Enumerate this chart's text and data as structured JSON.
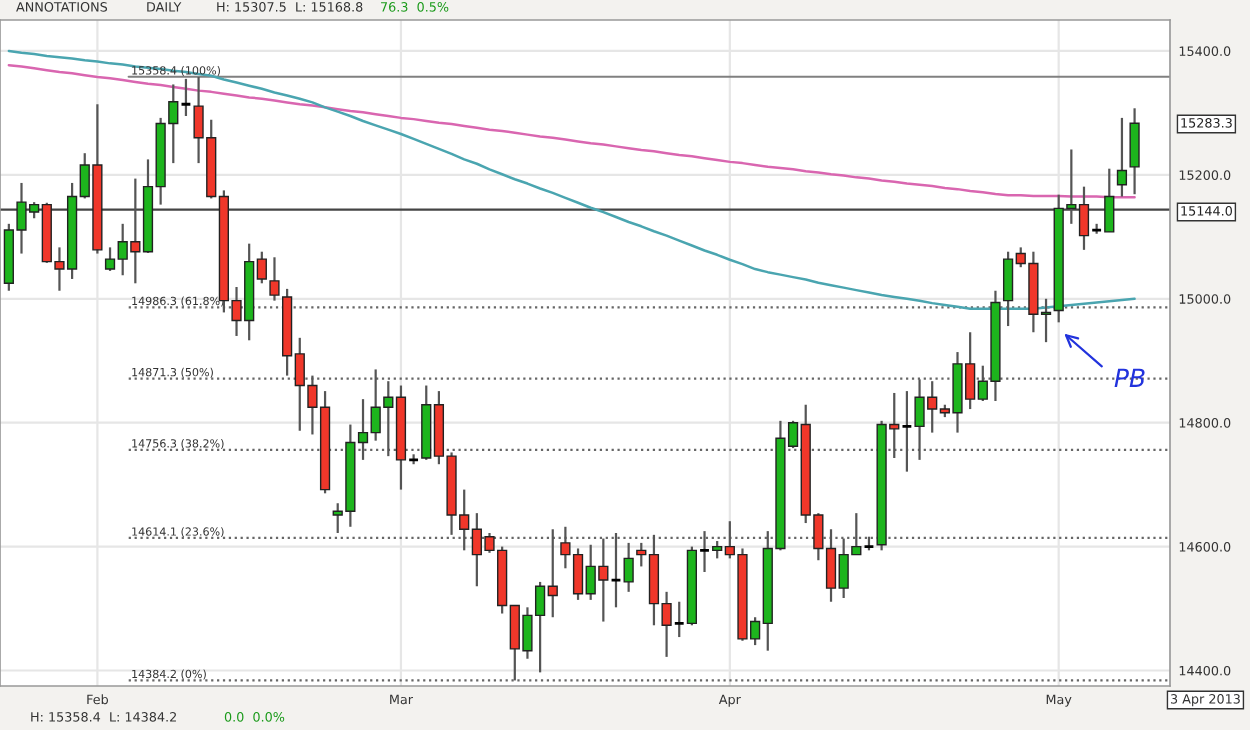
{
  "chart_data": {
    "type": "candlestick",
    "categories": [
      null,
      null,
      null,
      null,
      null,
      null,
      null,
      "Feb",
      null,
      null,
      null,
      null,
      null,
      null,
      null,
      null,
      null,
      null,
      null,
      null,
      null,
      null,
      null,
      null,
      null,
      null,
      null,
      null,
      null,
      null,
      null,
      "Mar",
      null,
      null,
      null,
      null,
      null,
      null,
      null,
      null,
      null,
      null,
      null,
      null,
      null,
      null,
      null,
      null,
      null,
      null,
      null,
      null,
      null,
      null,
      null,
      null,
      null,
      "Apr",
      null,
      null,
      null,
      null,
      null,
      null,
      null,
      null,
      null,
      null,
      null,
      null,
      null,
      null,
      null,
      null,
      null,
      null,
      null,
      null,
      null,
      null,
      null,
      null,
      null,
      "May",
      null,
      null,
      null,
      null,
      null,
      null
    ],
    "ohlc": [
      [
        15025,
        15121,
        15013,
        15111
      ],
      [
        15111,
        15187,
        15073,
        15156
      ],
      [
        15140,
        15156,
        15130,
        15152
      ],
      [
        15152,
        15155,
        15058,
        15060
      ],
      [
        15060,
        15083,
        15013,
        15048
      ],
      [
        15048,
        15187,
        15032,
        15165
      ],
      [
        15165,
        15235,
        15162,
        15216
      ],
      [
        15216,
        15314,
        15073,
        15079
      ],
      [
        15048,
        15083,
        15045,
        15064
      ],
      [
        15064,
        15121,
        15038,
        15092
      ],
      [
        15092,
        15194,
        15025,
        15076
      ],
      [
        15076,
        15225,
        15074,
        15181
      ],
      [
        15181,
        15292,
        15152,
        15283
      ],
      [
        15283,
        15346,
        15219,
        15318
      ],
      [
        15314,
        15355,
        15295,
        15314
      ],
      [
        15311,
        15358,
        15219,
        15260
      ],
      [
        15260,
        15289,
        15162,
        15165
      ],
      [
        15165,
        15175,
        14978,
        14997
      ],
      [
        14997,
        15019,
        14940,
        14965
      ],
      [
        14965,
        15089,
        14933,
        15060
      ],
      [
        15064,
        15076,
        15025,
        15032
      ],
      [
        15029,
        15067,
        14997,
        15006
      ],
      [
        15003,
        15016,
        14876,
        14908
      ],
      [
        14911,
        14937,
        14787,
        14860
      ],
      [
        14860,
        14876,
        14781,
        14825
      ],
      [
        14825,
        14851,
        14686,
        14692
      ],
      [
        14651,
        14670,
        14622,
        14657
      ],
      [
        14657,
        14797,
        14632,
        14768
      ],
      [
        14768,
        14838,
        14740,
        14784
      ],
      [
        14784,
        14886,
        14771,
        14825
      ],
      [
        14825,
        14867,
        14746,
        14841
      ],
      [
        14841,
        14860,
        14692,
        14740
      ],
      [
        14740,
        14749,
        14733,
        14740
      ],
      [
        14743,
        14860,
        14740,
        14829
      ],
      [
        14829,
        14851,
        14733,
        14746
      ],
      [
        14746,
        14752,
        14619,
        14651
      ],
      [
        14651,
        14692,
        14594,
        14628
      ],
      [
        14628,
        14654,
        14536,
        14587
      ],
      [
        14616,
        14622,
        14590,
        14594
      ],
      [
        14594,
        14600,
        14492,
        14505
      ],
      [
        14505,
        14505,
        14384,
        14435
      ],
      [
        14432,
        14502,
        14419,
        14489
      ],
      [
        14489,
        14543,
        14397,
        14536
      ],
      [
        14536,
        14628,
        14486,
        14521
      ],
      [
        14606,
        14632,
        14565,
        14587
      ],
      [
        14587,
        14597,
        14514,
        14524
      ],
      [
        14524,
        14603,
        14514,
        14568
      ],
      [
        14568,
        14613,
        14479,
        14546
      ],
      [
        14546,
        14622,
        14502,
        14546
      ],
      [
        14543,
        14606,
        14527,
        14581
      ],
      [
        14594,
        14606,
        14568,
        14587
      ],
      [
        14587,
        14619,
        14473,
        14508
      ],
      [
        14508,
        14527,
        14422,
        14473
      ],
      [
        14476,
        14511,
        14454,
        14476
      ],
      [
        14476,
        14600,
        14473,
        14594
      ],
      [
        14594,
        14625,
        14559,
        14594
      ],
      [
        14594,
        14609,
        14581,
        14600
      ],
      [
        14600,
        14641,
        14581,
        14587
      ],
      [
        14587,
        14597,
        14448,
        14451
      ],
      [
        14451,
        14486,
        14441,
        14479
      ],
      [
        14476,
        14625,
        14432,
        14597
      ],
      [
        14597,
        14803,
        14594,
        14775
      ],
      [
        14762,
        14803,
        14759,
        14800
      ],
      [
        14797,
        14829,
        14638,
        14651
      ],
      [
        14651,
        14654,
        14578,
        14597
      ],
      [
        14597,
        14628,
        14511,
        14533
      ],
      [
        14533,
        14613,
        14517,
        14587
      ],
      [
        14587,
        14654,
        14587,
        14600
      ],
      [
        14600,
        14616,
        14594,
        14600
      ],
      [
        14603,
        14803,
        14594,
        14797
      ],
      [
        14797,
        14848,
        14743,
        14790
      ],
      [
        14794,
        14851,
        14721,
        14794
      ],
      [
        14794,
        14870,
        14740,
        14841
      ],
      [
        14841,
        14867,
        14784,
        14822
      ],
      [
        14822,
        14829,
        14809,
        14816
      ],
      [
        14816,
        14914,
        14784,
        14895
      ],
      [
        14895,
        14946,
        14822,
        14838
      ],
      [
        14838,
        14892,
        14835,
        14867
      ],
      [
        14867,
        15013,
        14835,
        14994
      ],
      [
        14997,
        15076,
        14956,
        15064
      ],
      [
        15073,
        15083,
        15051,
        15057
      ],
      [
        15057,
        15076,
        14946,
        14975
      ],
      [
        14975,
        15000,
        14930,
        14978
      ],
      [
        14981,
        15168,
        14962,
        15146
      ],
      [
        15146,
        15241,
        15121,
        15152
      ],
      [
        15152,
        15181,
        15079,
        15102
      ],
      [
        15111,
        15121,
        15105,
        15111
      ],
      [
        15108,
        15210,
        15108,
        15165
      ],
      [
        15184,
        15292,
        15165,
        15207
      ],
      [
        15213,
        15307.5,
        15168.8,
        15283.3
      ]
    ],
    "colors": [
      "#1db51d",
      "#1db51d",
      "#1db51d",
      "#f0372a",
      "#f0372a",
      "#1db51d",
      "#1db51d",
      "#f0372a",
      "#1db51d",
      "#1db51d",
      "#f0372a",
      "#1db51d",
      "#1db51d",
      "#1db51d",
      "#000000",
      "#f0372a",
      "#f0372a",
      "#f0372a",
      "#f0372a",
      "#1db51d",
      "#f0372a",
      "#f0372a",
      "#f0372a",
      "#f0372a",
      "#f0372a",
      "#f0372a",
      "#1db51d",
      "#1db51d",
      "#1db51d",
      "#1db51d",
      "#1db51d",
      "#f0372a",
      "#000000",
      "#1db51d",
      "#f0372a",
      "#f0372a",
      "#f0372a",
      "#f0372a",
      "#f0372a",
      "#f0372a",
      "#f0372a",
      "#1db51d",
      "#1db51d",
      "#f0372a",
      "#f0372a",
      "#f0372a",
      "#1db51d",
      "#f0372a",
      "#000000",
      "#1db51d",
      "#f0372a",
      "#f0372a",
      "#f0372a",
      "#000000",
      "#1db51d",
      "#000000",
      "#1db51d",
      "#f0372a",
      "#f0372a",
      "#1db51d",
      "#1db51d",
      "#1db51d",
      "#1db51d",
      "#f0372a",
      "#f0372a",
      "#f0372a",
      "#1db51d",
      "#1db51d",
      "#000000",
      "#1db51d",
      "#f0372a",
      "#000000",
      "#1db51d",
      "#f0372a",
      "#f0372a",
      "#1db51d",
      "#f0372a",
      "#1db51d",
      "#1db51d",
      "#1db51d",
      "#f0372a",
      "#f0372a",
      "#1db51d",
      "#1db51d",
      "#1db51d",
      "#f0372a",
      "#000000",
      "#1db51d",
      "#1db51d",
      "#1db51d"
    ],
    "series": [
      {
        "type": "line",
        "color": "#d966b0",
        "values": [
          15377,
          15375,
          15372,
          15369,
          15366,
          15364,
          15361,
          15358,
          15356,
          15353,
          15350,
          15347,
          15345,
          15342,
          15339,
          15336,
          15334,
          15331,
          15328,
          15325,
          15323,
          15320,
          15317,
          15314,
          15312,
          15309,
          15306,
          15303,
          15301,
          15298,
          15295,
          15292,
          15290,
          15287,
          15284,
          15282,
          15279,
          15276,
          15273,
          15271,
          15268,
          15265,
          15262,
          15260,
          15257,
          15254,
          15251,
          15249,
          15246,
          15243,
          15240,
          15238,
          15235,
          15232,
          15230,
          15227,
          15224,
          15221,
          15219,
          15216,
          15213,
          15211,
          15209,
          15206,
          15204,
          15201,
          15199,
          15196,
          15194,
          15191,
          15189,
          15186,
          15184,
          15182,
          15179,
          15177,
          15174,
          15172,
          15169,
          15167,
          15167,
          15166,
          15166,
          15166,
          15165,
          15165,
          15165,
          15164,
          15164,
          15164
        ]
      },
      {
        "type": "line",
        "color": "#4aa5b0",
        "values": [
          15400,
          15397,
          15395,
          15392,
          15390,
          15388,
          15385,
          15383,
          15380,
          15378,
          15375,
          15373,
          15371,
          15368,
          15366,
          15363,
          15360,
          15354,
          15349,
          15344,
          15339,
          15333,
          15328,
          15323,
          15317,
          15309,
          15302,
          15295,
          15287,
          15280,
          15273,
          15266,
          15258,
          15250,
          15242,
          15234,
          15225,
          15218,
          15209,
          15201,
          15193,
          15186,
          15178,
          15171,
          15163,
          15155,
          15147,
          15140,
          15132,
          15124,
          15117,
          15109,
          15102,
          15094,
          15086,
          15078,
          15071,
          15063,
          15056,
          15048,
          15043,
          15039,
          15035,
          15031,
          15026,
          15022,
          15018,
          15014,
          15010,
          15006,
          15003,
          15000,
          14997,
          14993,
          14990,
          14987,
          14984,
          14984,
          14984,
          14984,
          14984,
          14984,
          14986,
          14988,
          14990,
          14992,
          14994,
          14996,
          14998,
          15000
        ]
      }
    ],
    "ylim": [
      14375,
      15450
    ],
    "yticks": [
      {
        "value": 14400,
        "label": "14400.0"
      },
      {
        "value": 14600,
        "label": "14600.0"
      },
      {
        "value": 14800,
        "label": "14800.0"
      },
      {
        "value": 15000,
        "label": "15000.0"
      },
      {
        "value": 15200,
        "label": "15200.0"
      },
      {
        "value": 15400,
        "label": "15400.0"
      }
    ],
    "grid": true,
    "ref_lines": [
      {
        "axis": "y",
        "value": 15358.4,
        "label": "15358.4 (100%)",
        "color": "#808080",
        "line_style": "solid"
      },
      {
        "axis": "y",
        "value": 14986.3,
        "label": "14986.3 (61.8%)",
        "color": "#666666",
        "line_style": "dotted"
      },
      {
        "axis": "y",
        "value": 14871.3,
        "label": "14871.3 (50%)",
        "color": "#666666",
        "line_style": "dotted"
      },
      {
        "axis": "y",
        "value": 14756.3,
        "label": "14756.3 (38.2%)",
        "color": "#666666",
        "line_style": "dotted"
      },
      {
        "axis": "y",
        "value": 14614.1,
        "label": "14614.1 (23.6%)",
        "color": "#666666",
        "line_style": "dotted"
      },
      {
        "axis": "y",
        "value": 14384.2,
        "label": "14384.2 (0%)",
        "color": "#666666",
        "line_style": "dotted"
      },
      {
        "axis": "y",
        "value": 15144,
        "color": "#444444",
        "line_style": "solid"
      }
    ],
    "annotations": [
      "ANNOTATIONS",
      "DAILY",
      "H: 15307.5  L: 15168.8",
      "76.3  0.5%",
      "H: 15358.4  L: 14384.2",
      "0.0  0.0%",
      "3 Apr 2013",
      "15283.3",
      "15144.0",
      "PB"
    ]
  }
}
